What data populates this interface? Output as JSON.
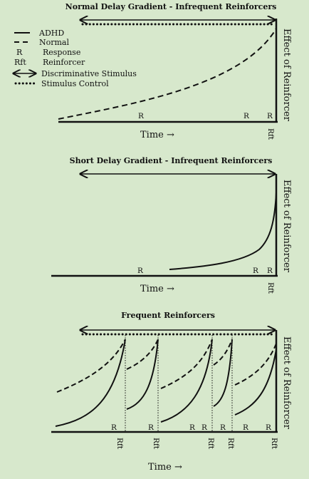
{
  "background": "#d7e8cc",
  "ink": "#111111",
  "panel1": {
    "title": "Normal Delay Gradient - Infrequent Reinforcers",
    "time_label": "Time →",
    "y_label": "Effect of Reinforcer",
    "response_label": "R",
    "reinforcer_label": "Rft"
  },
  "legend": {
    "adhd": "ADHD",
    "normal": "Normal",
    "r_symbol": "R",
    "r_text": "Response",
    "rft_symbol": "Rft",
    "rft_text": "Reinforcer",
    "disc_text": "Discriminative Stimulus",
    "stim_text": "Stimulus Control"
  },
  "panel2": {
    "title": "Short Delay Gradient - Infrequent Reinforcers",
    "time_label": "Time →",
    "y_label": "Effect of Reinforcer",
    "response_label": "R",
    "reinforcer_label": "Rft"
  },
  "panel3": {
    "title": "Frequent Reinforcers",
    "time_label": "Time →",
    "y_label": "Effect of Reinforcer",
    "response_label": "R",
    "reinforcer_label": "Rft"
  }
}
